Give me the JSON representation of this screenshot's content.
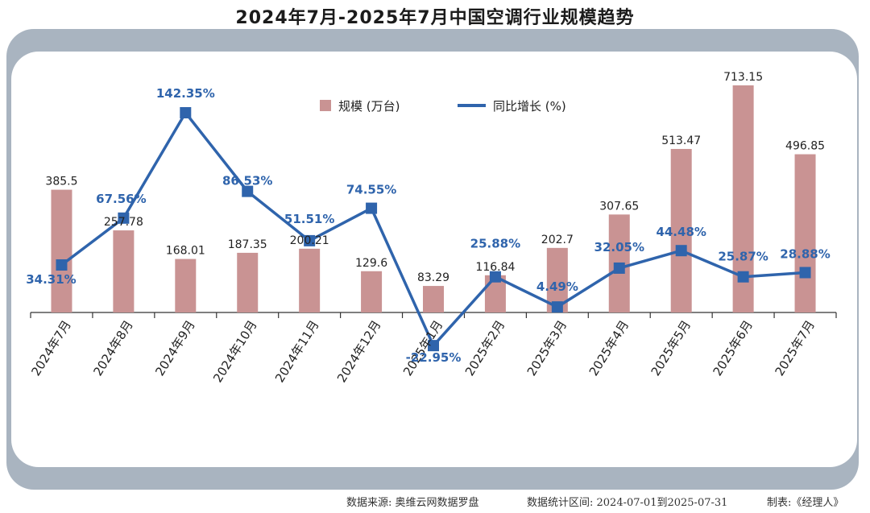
{
  "chart_data": {
    "type": "bar",
    "title": "2024年7月-2025年7月中国空调行业规模趋势",
    "categories": [
      "2024年7月",
      "2024年8月",
      "2024年9月",
      "2024年10月",
      "2024年11月",
      "2024年12月",
      "2025年1月",
      "2025年2月",
      "2025年3月",
      "2025年4月",
      "2025年5月",
      "2025年6月",
      "2025年7月"
    ],
    "series": [
      {
        "name": "规模 (万台)",
        "type": "bar",
        "color": "#c99393",
        "values": [
          385.5,
          257.78,
          168.01,
          187.35,
          200.21,
          129.6,
          83.29,
          116.84,
          202.7,
          307.65,
          513.47,
          713.15,
          496.85
        ],
        "labels": [
          "385.5",
          "257.78",
          "168.01",
          "187.35",
          "200.21",
          "129.6",
          "83.29",
          "116.84",
          "202.7",
          "307.65",
          "513.47",
          "713.15",
          "496.85"
        ]
      },
      {
        "name": "同比增长 (%)",
        "type": "line",
        "color": "#2f64ac",
        "values": [
          34.31,
          67.56,
          142.35,
          86.53,
          51.51,
          74.55,
          -22.95,
          25.88,
          4.49,
          32.05,
          44.48,
          25.87,
          28.88
        ],
        "labels": [
          "34.31%",
          "67.56%",
          "142.35%",
          "86.53%",
          "51.51%",
          "74.55%",
          "-22.95%",
          "25.88%",
          "4.49%",
          "32.05%",
          "44.48%",
          "25.87%",
          "28.88%"
        ]
      }
    ],
    "bar_ylim": [
      0,
      800
    ],
    "line_ylim": [
      -40,
      160
    ],
    "legend_position": "top-center",
    "grid": false
  },
  "footer": {
    "source": "数据来源: 奥维云网数据罗盘",
    "period": "数据统计区间: 2024-07-01到2025-07-31",
    "made_by": "制表:《经理人》"
  }
}
